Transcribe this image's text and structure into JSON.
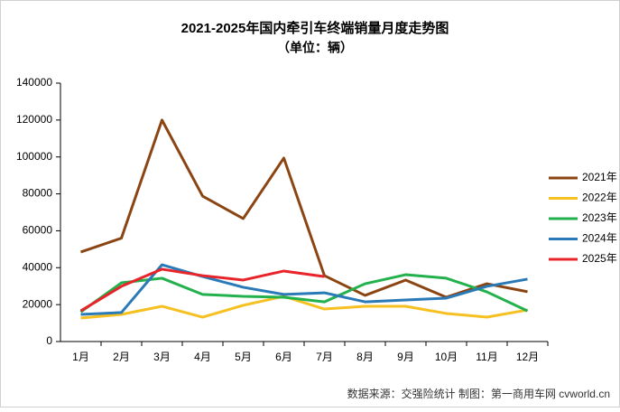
{
  "chart_data": {
    "type": "line",
    "title": "2021-2025年国内牵引车终端销量月度走势图",
    "subtitle": "（单位：辆）",
    "source": "数据来源：交强险统计   制图：第一商用车网 cvworld.cn",
    "categories": [
      "1月",
      "2月",
      "3月",
      "4月",
      "5月",
      "6月",
      "7月",
      "8月",
      "9月",
      "10月",
      "11月",
      "12月"
    ],
    "series": [
      {
        "name": "2021年",
        "color": "#8b4513",
        "values": [
          48500,
          56000,
          120000,
          78800,
          66600,
          99400,
          35700,
          25000,
          33300,
          24000,
          31300,
          27000
        ]
      },
      {
        "name": "2022年",
        "color": "#f5c020",
        "values": [
          12700,
          14700,
          19100,
          13200,
          19600,
          24500,
          17600,
          19100,
          19100,
          15200,
          13200,
          17100
        ]
      },
      {
        "name": "2023年",
        "color": "#22b14c",
        "values": [
          16000,
          31800,
          34300,
          25500,
          24500,
          24000,
          21500,
          31300,
          36200,
          34300,
          26900,
          16600
        ]
      },
      {
        "name": "2024年",
        "color": "#2a7ab8",
        "values": [
          14700,
          15700,
          41600,
          35200,
          29400,
          25500,
          26400,
          21500,
          22500,
          23500,
          29900,
          33800
        ]
      },
      {
        "name": "2025年",
        "color": "#e8242a",
        "values": [
          16600,
          29900,
          39200,
          35700,
          33300,
          38200,
          35200,
          null,
          null,
          null,
          null,
          null
        ]
      }
    ],
    "ylim": [
      0,
      140000
    ],
    "yticks": [
      0,
      20000,
      40000,
      60000,
      80000,
      100000,
      120000,
      140000
    ],
    "grid": false,
    "legend": "right"
  }
}
